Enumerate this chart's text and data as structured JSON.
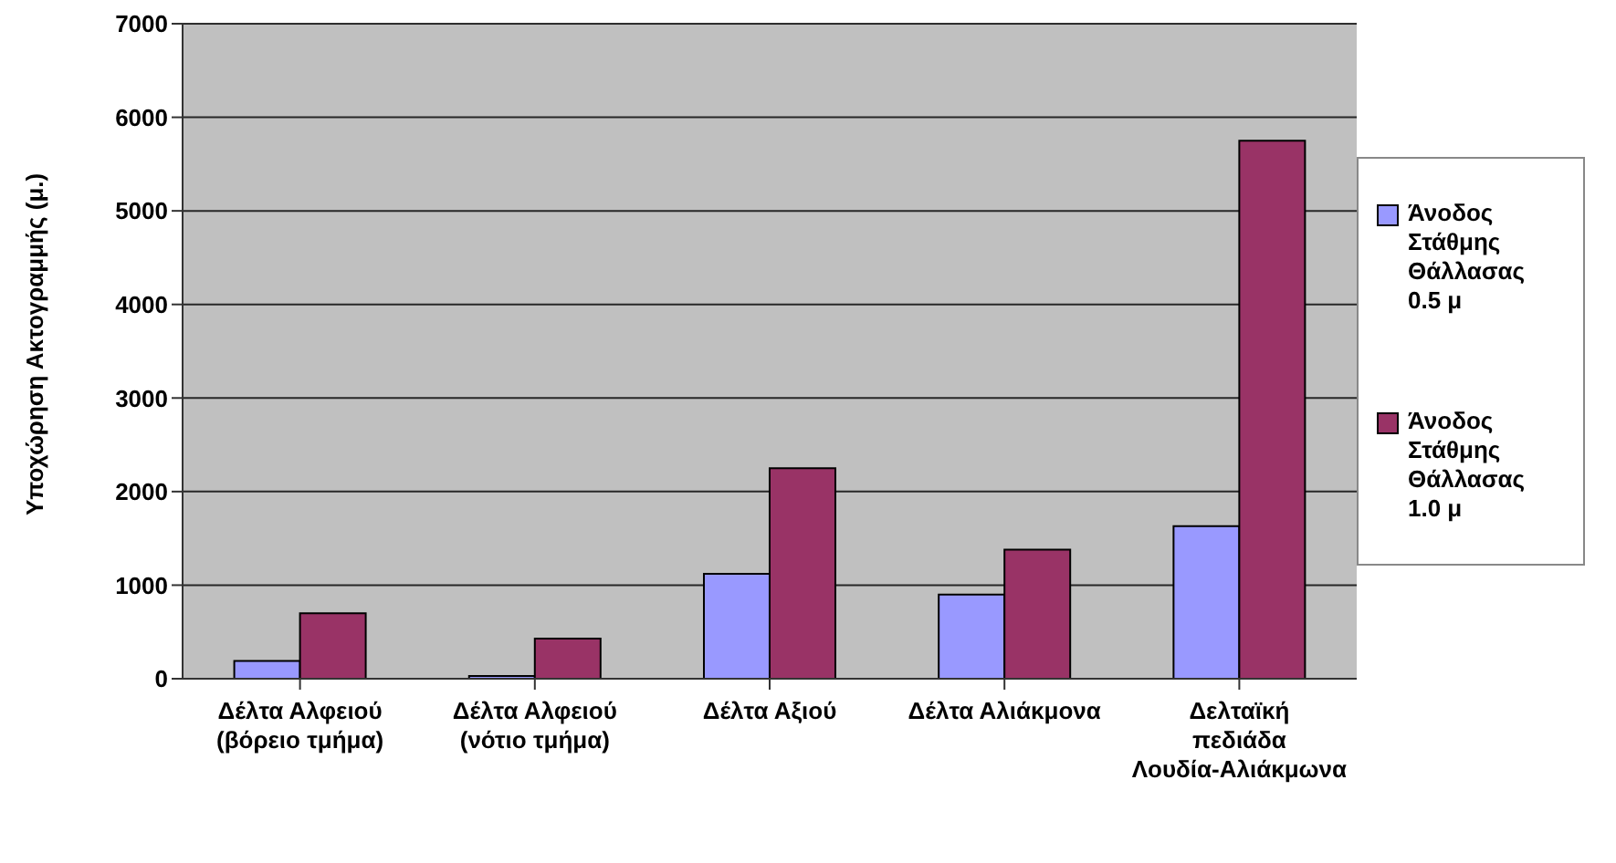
{
  "chart_data": {
    "type": "bar",
    "ylabel": "Υποχώρηση Ακτογραμμής (μ.)",
    "categories": [
      "Δέλτα Αλφειού (βόρειο τμήμα)",
      "Δέλτα Αλφειού (νότιο τμήμα)",
      "Δέλτα Αξιού",
      "Δέλτα Αλιάκμονα",
      "Δελταϊκή πεδιάδα Λουδία-Αλιάκμωνα"
    ],
    "series": [
      {
        "name": "Άνοδος Στάθμης Θάλλασας 0.5 μ",
        "color": "#9999ff",
        "values": [
          190,
          30,
          1120,
          900,
          1630
        ]
      },
      {
        "name": "Άνοδος Στάθμης Θάλλασας 1.0 μ",
        "color": "#993366",
        "values": [
          700,
          430,
          2250,
          1380,
          5750
        ]
      }
    ],
    "ylim": [
      0,
      7000
    ],
    "yticks": [
      0,
      1000,
      2000,
      3000,
      4000,
      5000,
      6000,
      7000
    ],
    "grid": "y",
    "legend": "right"
  }
}
